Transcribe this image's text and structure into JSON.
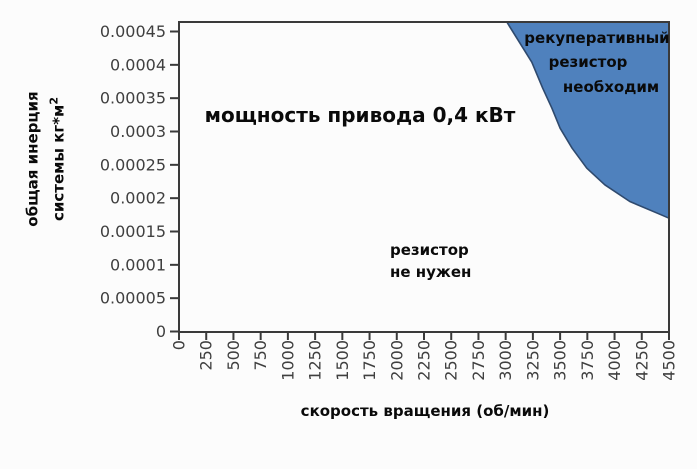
{
  "chart_data": {
    "type": "area",
    "title": "мощность привода 0,4 кВт",
    "xlabel": "скорость вращения (об/мин)",
    "ylabel_line1": "общая инерция",
    "ylabel_line2": "системы кг*м",
    "ylabel_superscript": "2",
    "xlim": [
      0,
      4500
    ],
    "ylim": [
      0,
      0.00045
    ],
    "x_ticks": [
      0,
      250,
      500,
      750,
      1000,
      1250,
      1500,
      1750,
      2000,
      2250,
      2500,
      2750,
      3000,
      3250,
      3500,
      3750,
      4000,
      4250,
      4500
    ],
    "y_tick_labels": [
      "0",
      "0.00005",
      "0.0001",
      "0.00015",
      "0.0002",
      "0.00025",
      "0.0003",
      "0.00035",
      "0.0004",
      "0.00045"
    ],
    "grid": false,
    "legend": "none",
    "regions": {
      "required": {
        "label_line1": "рекуперативный",
        "label_line2": "резистор",
        "label_line3": "необходим",
        "fill_color": "#4f81bd"
      },
      "not_needed": {
        "label_line1": "резистор",
        "label_line2": "не нужен"
      }
    },
    "boundary_points": [
      [
        3010,
        0.000465
      ],
      [
        3160,
        0.000425
      ],
      [
        3240,
        0.000404
      ],
      [
        3340,
        0.000365
      ],
      [
        3425,
        0.000335
      ],
      [
        3500,
        0.000305
      ],
      [
        3610,
        0.000275
      ],
      [
        3745,
        0.000245
      ],
      [
        3910,
        0.00022
      ],
      [
        4140,
        0.000195
      ],
      [
        4415,
        0.000176
      ],
      [
        4500,
        0.00017
      ]
    ],
    "colors": {
      "region_fill": "#4f81bd",
      "region_stroke": "#2f4a6e",
      "axis": "#3a3a3a",
      "tick_text": "#3f3f3f",
      "label_text": "#0a0a0a",
      "background": "#fcfcfc"
    }
  }
}
